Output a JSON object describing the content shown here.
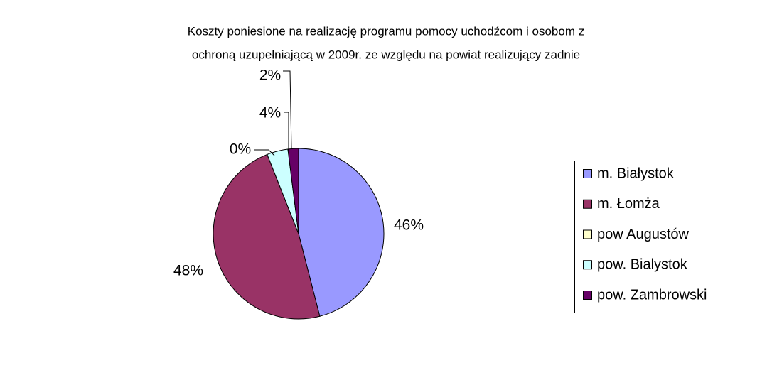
{
  "chart_data": {
    "type": "pie",
    "title": [
      "Koszty poniesione na realizację programu pomocy uchodźcom i osobom z",
      "ochroną uzupełniającą w 2009r. ze względu na powiat realizujący zadnie"
    ],
    "categories": [
      "m. Białystok",
      "m. Łomża",
      "pow Augustów",
      "pow. Bialystok",
      "pow. Zambrowski"
    ],
    "values": [
      46,
      48,
      0,
      4,
      2
    ],
    "value_labels": [
      "46%",
      "48%",
      "0%",
      "4%",
      "2%"
    ],
    "colors": [
      "#9999ff",
      "#993366",
      "#ffffcc",
      "#ccffff",
      "#660066"
    ],
    "legend": "right"
  }
}
